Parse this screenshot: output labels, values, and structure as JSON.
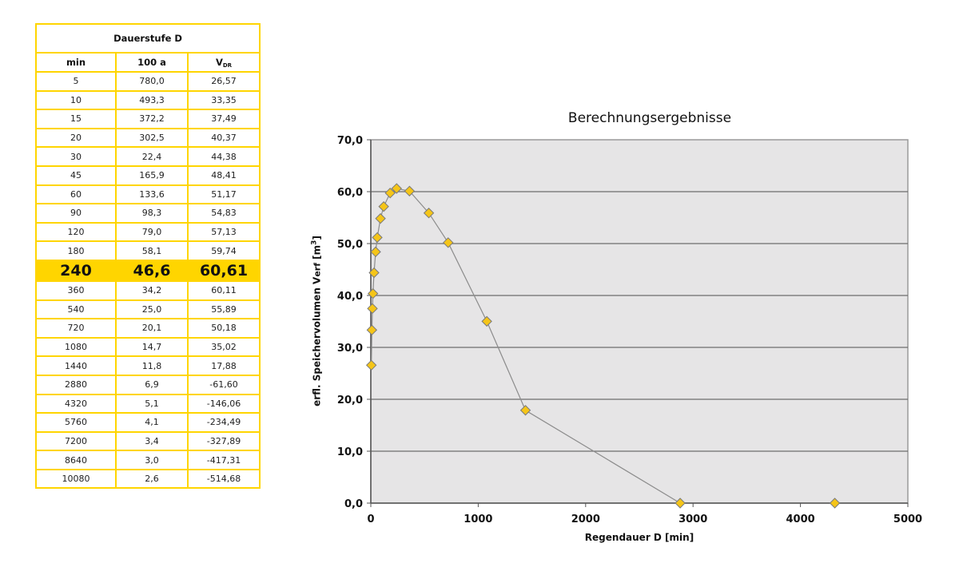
{
  "table": {
    "title": "Dauerstufe D",
    "headers": {
      "col1": "min",
      "col2": "100 a",
      "col3_main": "V",
      "col3_sub": "DR"
    },
    "rows": [
      {
        "min": "5",
        "a100": "780,0",
        "vdr": "26,57"
      },
      {
        "min": "10",
        "a100": "493,3",
        "vdr": "33,35"
      },
      {
        "min": "15",
        "a100": "372,2",
        "vdr": "37,49"
      },
      {
        "min": "20",
        "a100": "302,5",
        "vdr": "40,37"
      },
      {
        "min": "30",
        "a100": "22,4",
        "vdr": "44,38"
      },
      {
        "min": "45",
        "a100": "165,9",
        "vdr": "48,41"
      },
      {
        "min": "60",
        "a100": "133,6",
        "vdr": "51,17"
      },
      {
        "min": "90",
        "a100": "98,3",
        "vdr": "54,83"
      },
      {
        "min": "120",
        "a100": "79,0",
        "vdr": "57,13"
      },
      {
        "min": "180",
        "a100": "58,1",
        "vdr": "59,74"
      },
      {
        "min": "240",
        "a100": "46,6",
        "vdr": "60,61",
        "highlight": true
      },
      {
        "min": "360",
        "a100": "34,2",
        "vdr": "60,11"
      },
      {
        "min": "540",
        "a100": "25,0",
        "vdr": "55,89"
      },
      {
        "min": "720",
        "a100": "20,1",
        "vdr": "50,18"
      },
      {
        "min": "1080",
        "a100": "14,7",
        "vdr": "35,02"
      },
      {
        "min": "1440",
        "a100": "11,8",
        "vdr": "17,88"
      },
      {
        "min": "2880",
        "a100": "6,9",
        "vdr": "-61,60"
      },
      {
        "min": "4320",
        "a100": "5,1",
        "vdr": "-146,06"
      },
      {
        "min": "5760",
        "a100": "4,1",
        "vdr": "-234,49"
      },
      {
        "min": "7200",
        "a100": "3,4",
        "vdr": "-327,89"
      },
      {
        "min": "8640",
        "a100": "3,0",
        "vdr": "-417,31"
      },
      {
        "min": "10080",
        "a100": "2,6",
        "vdr": "-514,68"
      }
    ]
  },
  "colors": {
    "accent_yellow": "#ffd500",
    "marker_fill": "#f5c518",
    "marker_stroke": "#7a7a7a",
    "line": "#8c8c8c",
    "plot_bg": "#e6e5e6",
    "gridline": "#6e6e6e"
  },
  "chart_data": {
    "type": "scatter",
    "title": "Berechnungsergebnisse",
    "xlabel": "Regendauer D [min]",
    "ylabel": "erfl. Speichervolumen Verf [m³]",
    "xlim": [
      0,
      5000
    ],
    "ylim": [
      0,
      70
    ],
    "x_ticks": [
      "0",
      "1000",
      "2000",
      "3000",
      "4000",
      "5000"
    ],
    "y_ticks": [
      "0,0",
      "10,0",
      "20,0",
      "30,0",
      "40,0",
      "50,0",
      "60,0",
      "70,0"
    ],
    "grid": "horizontal",
    "legend": "none",
    "marker": "diamond",
    "series": [
      {
        "name": "Verf",
        "x": [
          5,
          10,
          15,
          20,
          30,
          45,
          60,
          90,
          120,
          180,
          240,
          360,
          540,
          720,
          1080,
          1440,
          2880,
          4320
        ],
        "y": [
          26.57,
          33.35,
          37.49,
          40.37,
          44.38,
          48.41,
          51.17,
          54.83,
          57.13,
          59.74,
          60.61,
          60.11,
          55.89,
          50.18,
          35.02,
          17.88,
          0,
          0
        ],
        "line_through_index": 16
      }
    ]
  }
}
